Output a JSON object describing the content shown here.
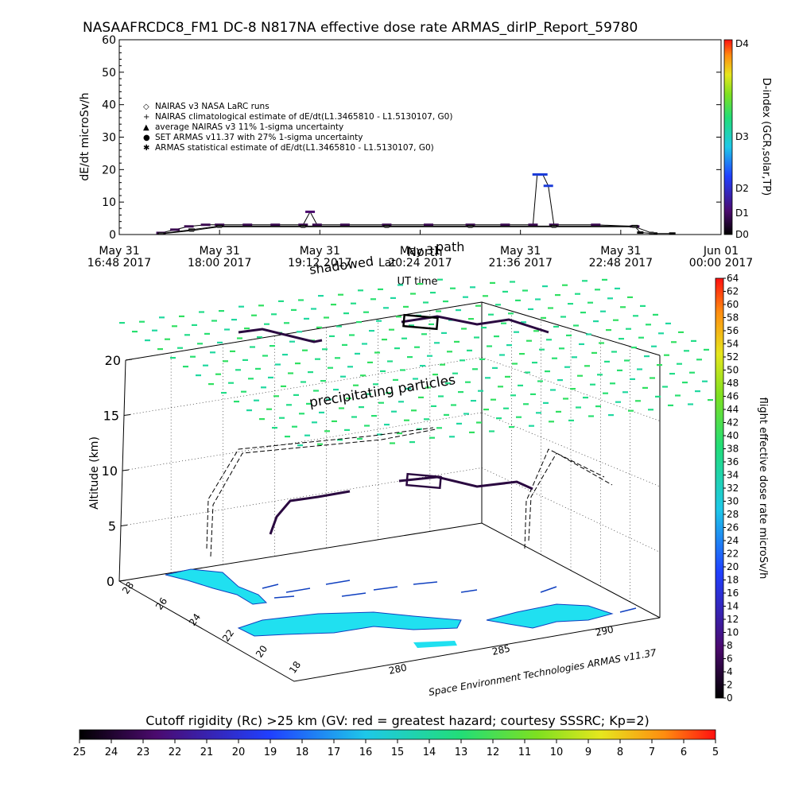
{
  "title": "NASAAFRCDC8_FM1 DC-8   N817NA effective dose rate ARMAS_dirIP_Report_59780",
  "top_panel": {
    "ylabel": "dE/dt microSv/h",
    "xlabel": "UT time",
    "y_ticks": [
      "0",
      "10",
      "20",
      "30",
      "40",
      "50",
      "60"
    ],
    "x_ticks": [
      {
        "date": "May 31",
        "time": "16:48 2017"
      },
      {
        "date": "May 31",
        "time": "18:00 2017"
      },
      {
        "date": "May 31",
        "time": "19:12 2017"
      },
      {
        "date": "May 31",
        "time": "20:24 2017"
      },
      {
        "date": "May 31",
        "time": "21:36 2017"
      },
      {
        "date": "May 31",
        "time": "22:48 2017"
      },
      {
        "date": "Jun 01",
        "time": "00:00 2017"
      }
    ],
    "legend": [
      {
        "symbol": "◇",
        "text": "NAIRAS v3 NASA LaRC runs"
      },
      {
        "symbol": "+",
        "text": "NAIRAS climatological estimate of dE/dt(L1.3465810 - L1.5130107, G0)"
      },
      {
        "symbol": "▲",
        "text": "average NAIRAS v3 11% 1-sigma uncertainty"
      },
      {
        "symbol": "●",
        "text": "SET ARMAS v11.37 with 27% 1-sigma uncertainty"
      },
      {
        "symbol": "✱",
        "text": "ARMAS statistical estimate of dE/dt(L1.3465810 - L1.5130107, G0)"
      }
    ],
    "overlay_labels": {
      "north": "North",
      "path": "path",
      "shadowed": "shadowed",
      "lat": "Lat"
    },
    "dindex": {
      "label": "D-index (GCR,solar,TP)",
      "ticks": [
        "D0",
        "D1",
        "D2",
        "D3",
        "D4"
      ]
    }
  },
  "chart_data": [
    {
      "type": "line",
      "title": "NASAAFRCDC8_FM1 DC-8   N817NA effective dose rate ARMAS_dirIP_Report_59780",
      "xlabel": "UT time",
      "ylabel": "dE/dt microSv/h",
      "ylim": [
        0,
        60
      ],
      "x_range": [
        "2017-05-31 16:48",
        "2017-06-01 00:00"
      ],
      "series": [
        {
          "name": "SET ARMAS v11.37 with 27% 1-sigma uncertainty",
          "x": [
            "17:18",
            "17:28",
            "17:38",
            "17:50",
            "18:00",
            "18:20",
            "18:40",
            "19:00",
            "19:05",
            "19:10",
            "19:30",
            "20:00",
            "20:30",
            "21:00",
            "21:25",
            "21:45",
            "21:48",
            "21:52",
            "21:56",
            "22:00",
            "22:30",
            "22:58"
          ],
          "y": [
            0.5,
            1.5,
            2.5,
            3.0,
            3.0,
            3.0,
            3.0,
            3.0,
            7.0,
            3.0,
            3.0,
            3.0,
            3.0,
            3.0,
            3.0,
            3.0,
            18.5,
            18.5,
            15.0,
            3.0,
            3.0,
            2.5
          ]
        },
        {
          "name": "NAIRAS v3 NASA LaRC runs",
          "x": [
            "17:18",
            "17:40",
            "18:00",
            "19:00",
            "20:00",
            "21:00",
            "22:00",
            "22:58",
            "23:02",
            "23:12",
            "23:25"
          ],
          "y": [
            0.3,
            1.5,
            2.6,
            2.6,
            2.6,
            2.6,
            2.6,
            2.6,
            0.6,
            0.3,
            0.3
          ]
        },
        {
          "name": "ARMAS statistical estimate of dE/dt(L1.3465810 - L1.5130107, G0)",
          "x": [
            "17:18",
            "17:40",
            "18:00",
            "19:00",
            "20:00",
            "21:00",
            "22:00",
            "22:58",
            "23:10"
          ],
          "y": [
            0.2,
            1.2,
            2.4,
            2.4,
            2.4,
            2.4,
            2.4,
            2.4,
            0.5
          ]
        }
      ]
    },
    {
      "type": "scatter",
      "title": "",
      "zlabel": "Altitude (km)",
      "z_ticks": [
        "0",
        "5",
        "10",
        "15",
        "20"
      ],
      "lat_ticks": [
        "28",
        "26",
        "24",
        "22",
        "20",
        "18"
      ],
      "lon_ticks": [
        "280",
        "285",
        "290"
      ],
      "annotation": "precipitating particles",
      "credit": "Space Environment Technologies ARMAS v11.37",
      "colorbar": {
        "label": "flight effective dose rate microSv/h",
        "ticks": [
          "0",
          "2",
          "4",
          "6",
          "8",
          "10",
          "12",
          "14",
          "16",
          "18",
          "20",
          "22",
          "24",
          "26",
          "28",
          "30",
          "32",
          "34",
          "36",
          "38",
          "40",
          "42",
          "44",
          "46",
          "48",
          "50",
          "52",
          "54",
          "56",
          "58",
          "60",
          "62",
          "64"
        ]
      }
    },
    {
      "type": "heatmap",
      "title": "Cutoff rigidity (Rc) >25 km (GV: red = greatest hazard; courtesy SSSRC; Kp=2)",
      "ticks": [
        "25",
        "24",
        "23",
        "22",
        "21",
        "20",
        "19",
        "18",
        "17",
        "16",
        "15",
        "14",
        "13",
        "12",
        "11",
        "10",
        "9",
        "8",
        "7",
        "6",
        "5"
      ]
    }
  ],
  "colors": {
    "armas_series": "#2020c0",
    "nairas_series": "#000000",
    "particles": "#22dd88",
    "land": "#20e0f0",
    "coast": "#1040c0"
  }
}
